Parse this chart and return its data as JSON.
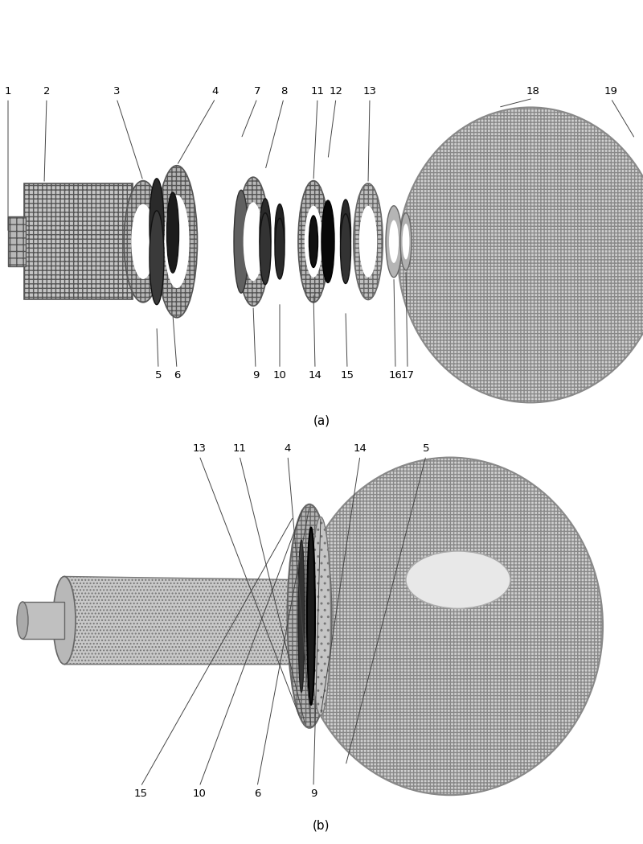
{
  "bg_color": "#ffffff",
  "fig_width": 8.0,
  "fig_height": 10.49,
  "subtitle_a": "(a)",
  "subtitle_b": "(b)",
  "gray_light": "#c8c8c8",
  "gray_mid": "#909090",
  "gray_dark": "#404040",
  "gray_very_dark": "#111111",
  "gray_ring": "#b0b0b0",
  "line_color": "#444444",
  "hatch_dense": "++++"
}
